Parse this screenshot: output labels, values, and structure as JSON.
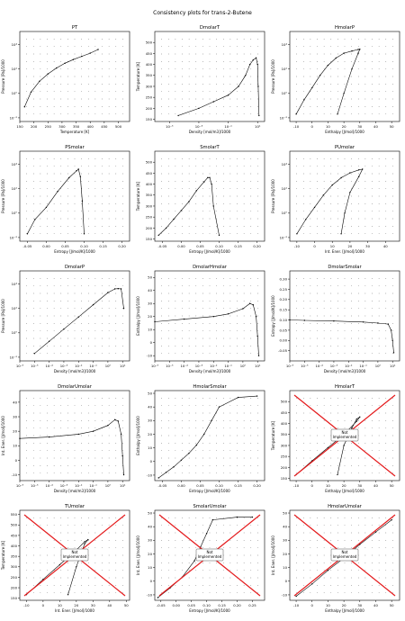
{
  "figure": {
    "suptitle": "Consistency plots for trans-2-Butene"
  },
  "colors": {
    "curve": "#000000",
    "boundary": "#e41a1c",
    "box_edge": "#555555"
  },
  "chart_data": [
    {
      "type": "line",
      "title": "PT",
      "xlabel": "Temperature [K]",
      "ylabel": "Pressure [Pa]/1000",
      "xscale": "linear",
      "yscale": "log",
      "xlim": [
        150,
        540
      ],
      "ylim": [
        0.005,
        120000
      ],
      "xticks": [
        150,
        200,
        250,
        300,
        350,
        400,
        450,
        500
      ],
      "xticklabels": [
        "150",
        "200",
        "250",
        "300",
        "350",
        "400",
        "450",
        "500"
      ],
      "yticks": [
        0.01,
        1,
        100,
        10000
      ],
      "yticklabels": [
        "10⁻²",
        "10⁰",
        "10²",
        "10⁴"
      ],
      "series": [
        {
          "x": [
            167,
            190,
            220,
            250,
            280,
            310,
            340,
            370,
            400,
            428
          ],
          "y": [
            0.08,
            1.3,
            10,
            40,
            120,
            300,
            600,
            1100,
            2000,
            4000
          ]
        }
      ]
    },
    {
      "type": "scatter",
      "title": "DmolarT",
      "xlabel": "Density [mol/m3]/1000",
      "ylabel": "Temperature [K]",
      "xscale": "log",
      "yscale": "linear",
      "xlim": [
        1e-06,
        30
      ],
      "ylim": [
        140,
        550
      ],
      "xticks": [
        1e-05,
        0.001,
        0.1,
        10
      ],
      "xticklabels": [
        "10⁻⁵",
        "10⁻³",
        "10⁻¹",
        "10¹"
      ],
      "yticks": [
        150,
        200,
        250,
        300,
        350,
        400,
        450,
        500
      ],
      "yticklabels": [
        "150",
        "200",
        "250",
        "300",
        "350",
        "400",
        "450",
        "500"
      ],
      "series": [
        {
          "x": [
            4e-05,
            0.001,
            0.01,
            0.1,
            0.5,
            1.5,
            3,
            5,
            8,
            10,
            11,
            12.5
          ],
          "y": [
            167,
            200,
            230,
            260,
            300,
            350,
            400,
            420,
            430,
            400,
            300,
            167
          ]
        }
      ]
    },
    {
      "type": "scatter",
      "title": "HmolarP",
      "xlabel": "Enthalpy [J/mol]/1000",
      "ylabel": "Pressure [Pa]/1000",
      "xscale": "linear",
      "yscale": "log",
      "xlim": [
        -14,
        55
      ],
      "ylim": [
        0.005,
        120000
      ],
      "xticks": [
        -10,
        0,
        10,
        20,
        30,
        40,
        50
      ],
      "xticklabels": [
        "-10",
        "0",
        "10",
        "20",
        "30",
        "40",
        "50"
      ],
      "yticks": [
        0.01,
        1,
        100,
        10000
      ],
      "yticklabels": [
        "10⁻²",
        "10⁰",
        "10²",
        "10⁴"
      ],
      "series": [
        {
          "x": [
            -10,
            -5,
            0,
            5,
            10,
            15,
            20,
            25,
            29,
            30,
            29,
            25,
            20,
            16
          ],
          "y": [
            0.02,
            0.3,
            3,
            30,
            200,
            800,
            2000,
            3000,
            4000,
            4200,
            2000,
            100,
            1,
            0.02
          ]
        }
      ]
    },
    {
      "type": "scatter",
      "title": "PSmolar",
      "xlabel": "Entropy [J/mol/K]/1000",
      "ylabel": "Pressure [Pa]/1000",
      "xscale": "linear",
      "yscale": "log",
      "xlim": [
        -0.07,
        0.22
      ],
      "ylim": [
        0.005,
        120000
      ],
      "xticks": [
        -0.05,
        0,
        0.05,
        0.1,
        0.15,
        0.2
      ],
      "xticklabels": [
        "-0.05",
        "0.00",
        "0.05",
        "0.10",
        "0.15",
        "0.20"
      ],
      "yticks": [
        0.01,
        1,
        100,
        10000
      ],
      "yticklabels": [
        "10⁻²",
        "10⁰",
        "10²",
        "10⁴"
      ],
      "series": [
        {
          "x": [
            -0.05,
            -0.03,
            0,
            0.03,
            0.06,
            0.08,
            0.085,
            0.09,
            0.095,
            0.1
          ],
          "y": [
            0.02,
            0.3,
            3,
            60,
            800,
            3000,
            4000,
            1000,
            10,
            0.02
          ]
        }
      ]
    },
    {
      "type": "scatter",
      "title": "SmolarT",
      "xlabel": "Entropy [J/mol/K]/1000",
      "ylabel": "Temperature [K]",
      "xscale": "linear",
      "yscale": "linear",
      "xlim": [
        -0.07,
        0.22
      ],
      "ylim": [
        140,
        550
      ],
      "xticks": [
        -0.05,
        0,
        0.05,
        0.1,
        0.15,
        0.2
      ],
      "xticklabels": [
        "-0.05",
        "0.00",
        "0.05",
        "0.10",
        "0.15",
        "0.20"
      ],
      "yticks": [
        150,
        200,
        250,
        300,
        350,
        400,
        450,
        500
      ],
      "yticklabels": [
        "150",
        "200",
        "250",
        "300",
        "350",
        "400",
        "450",
        "500"
      ],
      "series": [
        {
          "x": [
            -0.06,
            -0.04,
            -0.02,
            0,
            0.02,
            0.04,
            0.06,
            0.07,
            0.075,
            0.08,
            0.085,
            0.1
          ],
          "y": [
            167,
            200,
            240,
            280,
            320,
            370,
            410,
            430,
            430,
            400,
            300,
            167
          ]
        }
      ]
    },
    {
      "type": "scatter",
      "title": "PUmolar",
      "xlabel": "Int. Ener. [J/mol]/1000",
      "ylabel": "Pressure [Pa]/1000",
      "xscale": "linear",
      "yscale": "log",
      "xlim": [
        -14,
        48
      ],
      "ylim": [
        0.005,
        120000
      ],
      "xticks": [
        -10,
        0,
        10,
        20,
        30,
        40
      ],
      "xticklabels": [
        "-10",
        "0",
        "10",
        "20",
        "30",
        "40"
      ],
      "yticks": [
        0.01,
        1,
        100,
        10000
      ],
      "yticklabels": [
        "10⁻²",
        "10⁰",
        "10²",
        "10⁴"
      ],
      "series": [
        {
          "x": [
            -10,
            -5,
            0,
            5,
            10,
            15,
            20,
            25,
            27,
            25,
            20,
            17,
            15
          ],
          "y": [
            0.02,
            0.3,
            3,
            30,
            200,
            800,
            2000,
            3500,
            4000,
            1000,
            50,
            1,
            0.02
          ]
        }
      ]
    },
    {
      "type": "scatter",
      "title": "DmolarP",
      "xlabel": "Density [mol/m3]/1000",
      "ylabel": "Pressure [Pa]/1000",
      "xscale": "log",
      "yscale": "log",
      "xlim": [
        1e-06,
        30
      ],
      "ylim": [
        0.005,
        120000
      ],
      "xticks": [
        1e-06,
        1e-05,
        0.0001,
        0.001,
        0.01,
        0.1,
        1,
        10
      ],
      "xticklabels": [
        "10⁻⁶",
        "10⁻⁵",
        "10⁻⁴",
        "10⁻³",
        "10⁻²",
        "10⁻¹",
        "10⁰",
        "10¹"
      ],
      "yticks": [
        0.01,
        1,
        100,
        10000
      ],
      "yticklabels": [
        "10⁻²",
        "10⁰",
        "10²",
        "10⁴"
      ],
      "series": [
        {
          "x": [
            1e-05,
            0.0001,
            0.001,
            0.01,
            0.1,
            1,
            3,
            5,
            8,
            12
          ],
          "y": [
            0.02,
            0.2,
            2,
            20,
            200,
            2000,
            4000,
            4200,
            4000,
            100
          ]
        }
      ]
    },
    {
      "type": "scatter",
      "title": "DmolarHmolar",
      "xlabel": "Density [mol/m3]/1000",
      "ylabel": "Enthalpy [J/mol]/1000",
      "xscale": "log",
      "yscale": "linear",
      "xlim": [
        1e-06,
        30
      ],
      "ylim": [
        -14,
        55
      ],
      "xticks": [
        1e-06,
        1e-05,
        0.0001,
        0.001,
        0.01,
        0.1,
        1,
        10
      ],
      "xticklabels": [
        "10⁻⁶",
        "10⁻⁵",
        "10⁻⁴",
        "10⁻³",
        "10⁻²",
        "10⁻¹",
        "10⁰",
        "10¹"
      ],
      "yticks": [
        -10,
        0,
        10,
        20,
        30,
        40,
        50
      ],
      "yticklabels": [
        "-10",
        "0",
        "10",
        "20",
        "30",
        "40",
        "50"
      ],
      "series": [
        {
          "x": [
            1e-06,
            0.0001,
            0.01,
            0.1,
            1,
            3,
            5,
            8,
            10,
            12
          ],
          "y": [
            16,
            18,
            20,
            22,
            26,
            30,
            29,
            20,
            5,
            -10
          ]
        }
      ]
    },
    {
      "type": "scatter",
      "title": "DmolarSmolar",
      "xlabel": "Density [mol/m3]/1000",
      "ylabel": "Entropy [J/mol/K]/1000",
      "xscale": "log",
      "yscale": "linear",
      "xlim": [
        1e-06,
        30
      ],
      "ylim": [
        -0.1,
        0.34
      ],
      "xticks": [
        1e-06,
        1e-05,
        0.0001,
        0.001,
        0.01,
        0.1,
        1,
        10
      ],
      "xticklabels": [
        "10⁻⁶",
        "10⁻⁵",
        "10⁻⁴",
        "10⁻³",
        "10⁻²",
        "10⁻¹",
        "10⁰",
        "10¹"
      ],
      "yticks": [
        -0.05,
        0,
        0.05,
        0.1,
        0.15,
        0.2,
        0.25,
        0.3
      ],
      "yticklabels": [
        "-0.05",
        "0.00",
        "0.05",
        "0.10",
        "0.15",
        "0.20",
        "0.25",
        "0.30"
      ],
      "series": [
        {
          "x": [
            1e-06,
            1e-05,
            0.001,
            0.1,
            1,
            5,
            8,
            10,
            12
          ],
          "y": [
            0.1,
            0.098,
            0.095,
            0.09,
            0.085,
            0.08,
            0.05,
            0,
            -0.06
          ]
        }
      ]
    },
    {
      "type": "scatter",
      "title": "DmolarUmolar",
      "xlabel": "Density [mol/m3]/1000",
      "ylabel": "Int. Ener. [J/mol]/1000",
      "xscale": "log",
      "yscale": "linear",
      "xlim": [
        1e-06,
        30
      ],
      "ylim": [
        -14,
        48
      ],
      "xticks": [
        1e-06,
        1e-05,
        0.0001,
        0.001,
        0.01,
        0.1,
        1,
        10
      ],
      "xticklabels": [
        "10⁻⁶",
        "10⁻⁵",
        "10⁻⁴",
        "10⁻³",
        "10⁻²",
        "10⁻¹",
        "10⁰",
        "10¹"
      ],
      "yticks": [
        -10,
        0,
        10,
        20,
        30,
        40
      ],
      "yticklabels": [
        "-10",
        "0",
        "10",
        "20",
        "30",
        "40"
      ],
      "series": [
        {
          "x": [
            1e-06,
            0.0001,
            0.01,
            0.1,
            1,
            3,
            5,
            8,
            10,
            12
          ],
          "y": [
            15,
            16,
            18,
            20,
            24,
            28,
            27,
            18,
            3,
            -10
          ]
        }
      ]
    },
    {
      "type": "scatter",
      "title": "HmolarSmolar",
      "xlabel": "Entropy [J/mol/K]/1000",
      "ylabel": "Enthalpy [J/mol]/1000",
      "xscale": "linear",
      "yscale": "linear",
      "xlim": [
        -0.07,
        0.22
      ],
      "ylim": [
        -14,
        52
      ],
      "xticks": [
        -0.05,
        0,
        0.05,
        0.1,
        0.15,
        0.2
      ],
      "xticklabels": [
        "-0.05",
        "0.00",
        "0.05",
        "0.10",
        "0.15",
        "0.20"
      ],
      "yticks": [
        -10,
        0,
        10,
        20,
        30,
        40,
        50
      ],
      "yticklabels": [
        "-10",
        "0",
        "10",
        "20",
        "30",
        "40",
        "50"
      ],
      "series": [
        {
          "x": [
            -0.06,
            -0.04,
            -0.02,
            0,
            0.02,
            0.04,
            0.06,
            0.08,
            0.1,
            0.15,
            0.2
          ],
          "y": [
            -12,
            -8,
            -4,
            1,
            6,
            12,
            20,
            30,
            40,
            47,
            48
          ]
        }
      ]
    },
    {
      "type": "scatter",
      "title": "HmolarT",
      "xlabel": "Enthalpy [J/mol]/1000",
      "ylabel": "Temperature [K]",
      "xscale": "linear",
      "yscale": "linear",
      "xlim": [
        -14,
        55
      ],
      "ylim": [
        140,
        550
      ],
      "xticks": [
        -10,
        0,
        10,
        20,
        30,
        40,
        50
      ],
      "xticklabels": [
        "-10",
        "0",
        "10",
        "20",
        "30",
        "40",
        "50"
      ],
      "yticks": [
        150,
        200,
        250,
        300,
        350,
        400,
        450,
        500
      ],
      "yticklabels": [
        "150",
        "200",
        "250",
        "300",
        "350",
        "400",
        "450",
        "500"
      ],
      "annotation": "Not\nImplemented",
      "series": [
        {
          "x": [
            -10,
            0,
            10,
            20,
            28,
            30,
            28,
            25,
            20,
            16
          ],
          "y": [
            167,
            230,
            290,
            350,
            410,
            430,
            420,
            380,
            300,
            167
          ]
        }
      ]
    },
    {
      "type": "scatter",
      "title": "TUmolar",
      "xlabel": "Int. Ener. [J/mol]/1000",
      "ylabel": "Temperature [K]",
      "xscale": "linear",
      "yscale": "linear",
      "xlim": [
        -14,
        52
      ],
      "ylim": [
        140,
        570
      ],
      "xticks": [
        -10,
        0,
        10,
        20,
        30,
        40,
        50
      ],
      "xticklabels": [
        "-10",
        "0",
        "10",
        "20",
        "30",
        "40",
        "50"
      ],
      "yticks": [
        150,
        200,
        250,
        300,
        350,
        400,
        450,
        500,
        550
      ],
      "yticklabels": [
        "150",
        "200",
        "250",
        "300",
        "350",
        "400",
        "450",
        "500",
        "550"
      ],
      "annotation": "Not\nImplemented",
      "series": [
        {
          "x": [
            -10,
            0,
            10,
            20,
            25,
            27,
            25,
            20,
            15
          ],
          "y": [
            167,
            240,
            310,
            380,
            420,
            430,
            410,
            300,
            167
          ]
        }
      ]
    },
    {
      "type": "scatter",
      "title": "SmolarUmolar",
      "xlabel": "Entropy [J/mol/K]/1000",
      "ylabel": "Int. Ener. [J/mol]/1000",
      "xscale": "linear",
      "yscale": "linear",
      "xlim": [
        -0.07,
        0.29
      ],
      "ylim": [
        -14,
        52
      ],
      "xticks": [
        -0.05,
        0,
        0.05,
        0.1,
        0.15,
        0.2,
        0.25
      ],
      "xticklabels": [
        "-0.05",
        "0.00",
        "0.05",
        "0.10",
        "0.15",
        "0.20",
        "0.25"
      ],
      "yticks": [
        -10,
        0,
        10,
        20,
        30,
        40,
        50
      ],
      "yticklabels": [
        "-10",
        "0",
        "10",
        "20",
        "30",
        "40",
        "50"
      ],
      "annotation": "Not\nImplemented",
      "series": [
        {
          "x": [
            -0.06,
            -0.02,
            0.02,
            0.06,
            0.08,
            0.1,
            0.12,
            0.2,
            0.25
          ],
          "y": [
            -12,
            -5,
            3,
            15,
            25,
            35,
            45,
            47,
            47
          ]
        }
      ]
    },
    {
      "type": "scatter",
      "title": "HmolarUmolar",
      "xlabel": "Enthalpy [J/mol]/1000",
      "ylabel": "Int. Ener. [J/mol]/1000",
      "xscale": "linear",
      "yscale": "linear",
      "xlim": [
        -14,
        55
      ],
      "ylim": [
        -14,
        52
      ],
      "xticks": [
        -10,
        0,
        10,
        20,
        30,
        40,
        50
      ],
      "xticklabels": [
        "-10",
        "0",
        "10",
        "20",
        "30",
        "40",
        "50"
      ],
      "yticks": [
        -10,
        0,
        10,
        20,
        30,
        40,
        50
      ],
      "yticklabels": [
        "-10",
        "0",
        "10",
        "20",
        "30",
        "40",
        "50"
      ],
      "annotation": "Not\nImplemented",
      "series": [
        {
          "x": [
            -10,
            0,
            10,
            20,
            30,
            40,
            50
          ],
          "y": [
            -11,
            -2,
            8,
            17,
            27,
            36,
            45
          ]
        }
      ]
    }
  ]
}
